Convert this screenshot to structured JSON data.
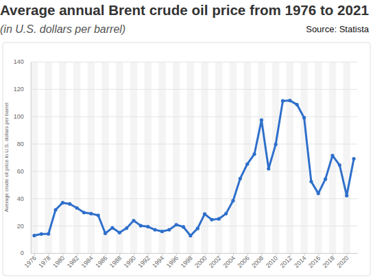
{
  "chart_data": {
    "type": "line",
    "title": "Average annual Brent crude oil price from 1976 to 2021",
    "subtitle": "(in U.S. dollars per barrel)",
    "source": "Source: Statista",
    "y_label": "Average crude oil price in U.S. dollars per barrel",
    "x": [
      1976,
      1977,
      1978,
      1979,
      1980,
      1981,
      1982,
      1983,
      1984,
      1985,
      1986,
      1987,
      1988,
      1989,
      1990,
      1991,
      1992,
      1993,
      1994,
      1995,
      1996,
      1997,
      1998,
      1999,
      2000,
      2001,
      2002,
      2003,
      2004,
      2005,
      2006,
      2007,
      2008,
      2009,
      2010,
      2011,
      2012,
      2013,
      2014,
      2015,
      2016,
      2017,
      2018,
      2019,
      2020,
      2021
    ],
    "values": [
      12.8,
      13.9,
      14.0,
      31.6,
      36.8,
      35.9,
      33.0,
      29.6,
      28.8,
      27.6,
      14.4,
      18.4,
      14.9,
      18.2,
      23.7,
      20.0,
      19.3,
      17.0,
      15.8,
      17.0,
      20.7,
      19.1,
      12.7,
      18.0,
      28.5,
      24.4,
      25.0,
      28.8,
      38.3,
      54.5,
      65.1,
      72.4,
      97.3,
      61.7,
      79.5,
      111.3,
      111.6,
      108.6,
      99.0,
      52.3,
      43.6,
      54.1,
      71.3,
      64.3,
      42.0,
      69.0
    ],
    "color": "#2e6fcb",
    "marker": "circle",
    "xlim": [
      1975.5,
      2021.5
    ],
    "xticks": [
      1976,
      1978,
      1980,
      1982,
      1984,
      1986,
      1988,
      1990,
      1992,
      1994,
      1996,
      1998,
      2000,
      2002,
      2004,
      2006,
      2008,
      2010,
      2012,
      2014,
      2016,
      2018,
      2020
    ],
    "ylim": [
      0,
      140
    ],
    "yticks": [
      0,
      20,
      40,
      60,
      80,
      100,
      120,
      140
    ],
    "grid": true
  }
}
